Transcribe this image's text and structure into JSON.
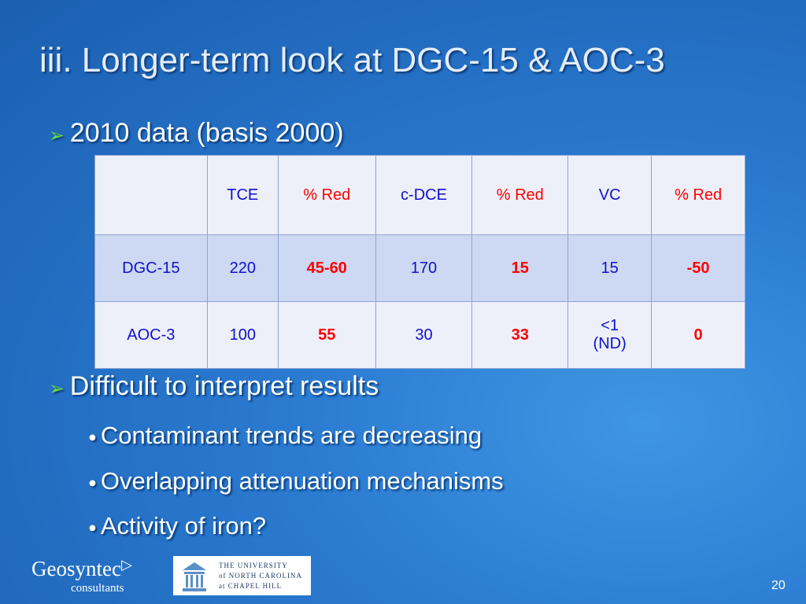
{
  "title": "iii. Longer-term look at DGC-15 & AOC-3",
  "bullets": [
    {
      "text": "2010 data (basis 2000)",
      "subbullets": []
    },
    {
      "text": "Difficult to interpret results",
      "subbullets": [
        "Contaminant trends are decreasing",
        "Overlapping attenuation mechanisms",
        "Activity of iron?"
      ]
    }
  ],
  "table": {
    "header": [
      "",
      "TCE",
      "% Red",
      "c-DCE",
      "% Red",
      "VC",
      "% Red"
    ],
    "rows": [
      [
        "DGC-15",
        "220",
        "45-60",
        "170",
        "15",
        "15",
        "-50"
      ],
      [
        "AOC-3",
        "100",
        "55",
        "30",
        "33",
        "<1\n(ND)",
        "0"
      ]
    ]
  },
  "footer": {
    "logo": "Geosyntec",
    "logo_sub": "consultants",
    "university": [
      "THE UNIVERSITY",
      "of NORTH CAROLINA",
      "at CHAPEL HILL"
    ],
    "page_number": "20"
  }
}
